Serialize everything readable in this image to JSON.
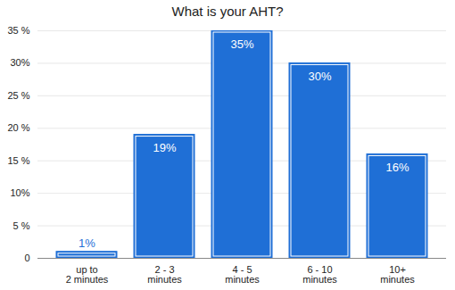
{
  "chart_data": {
    "type": "bar",
    "title": "What is your AHT?",
    "categories": [
      "up to\n2 minutes",
      "2 - 3\nminutes",
      "4 - 5\nminutes",
      "6 - 10\nminutes",
      "10+\nminutes"
    ],
    "values": [
      1,
      19,
      35,
      30,
      16
    ],
    "value_labels": [
      "1%",
      "19%",
      "35%",
      "30%",
      "16%"
    ],
    "color": "#1f6fd6",
    "ylim": [
      0,
      35
    ],
    "yticks": [
      0,
      {
        "value": 5,
        "label": "5 %"
      },
      {
        "value": 10,
        "label": "10%"
      },
      {
        "value": 15,
        "label": "15 %"
      },
      {
        "value": 20,
        "label": "20 %"
      },
      {
        "value": 25,
        "label": "25 %"
      },
      {
        "value": 30,
        "label": "30%"
      },
      {
        "value": 35,
        "label": "35 %"
      }
    ],
    "grid": true,
    "data_labels": true
  }
}
